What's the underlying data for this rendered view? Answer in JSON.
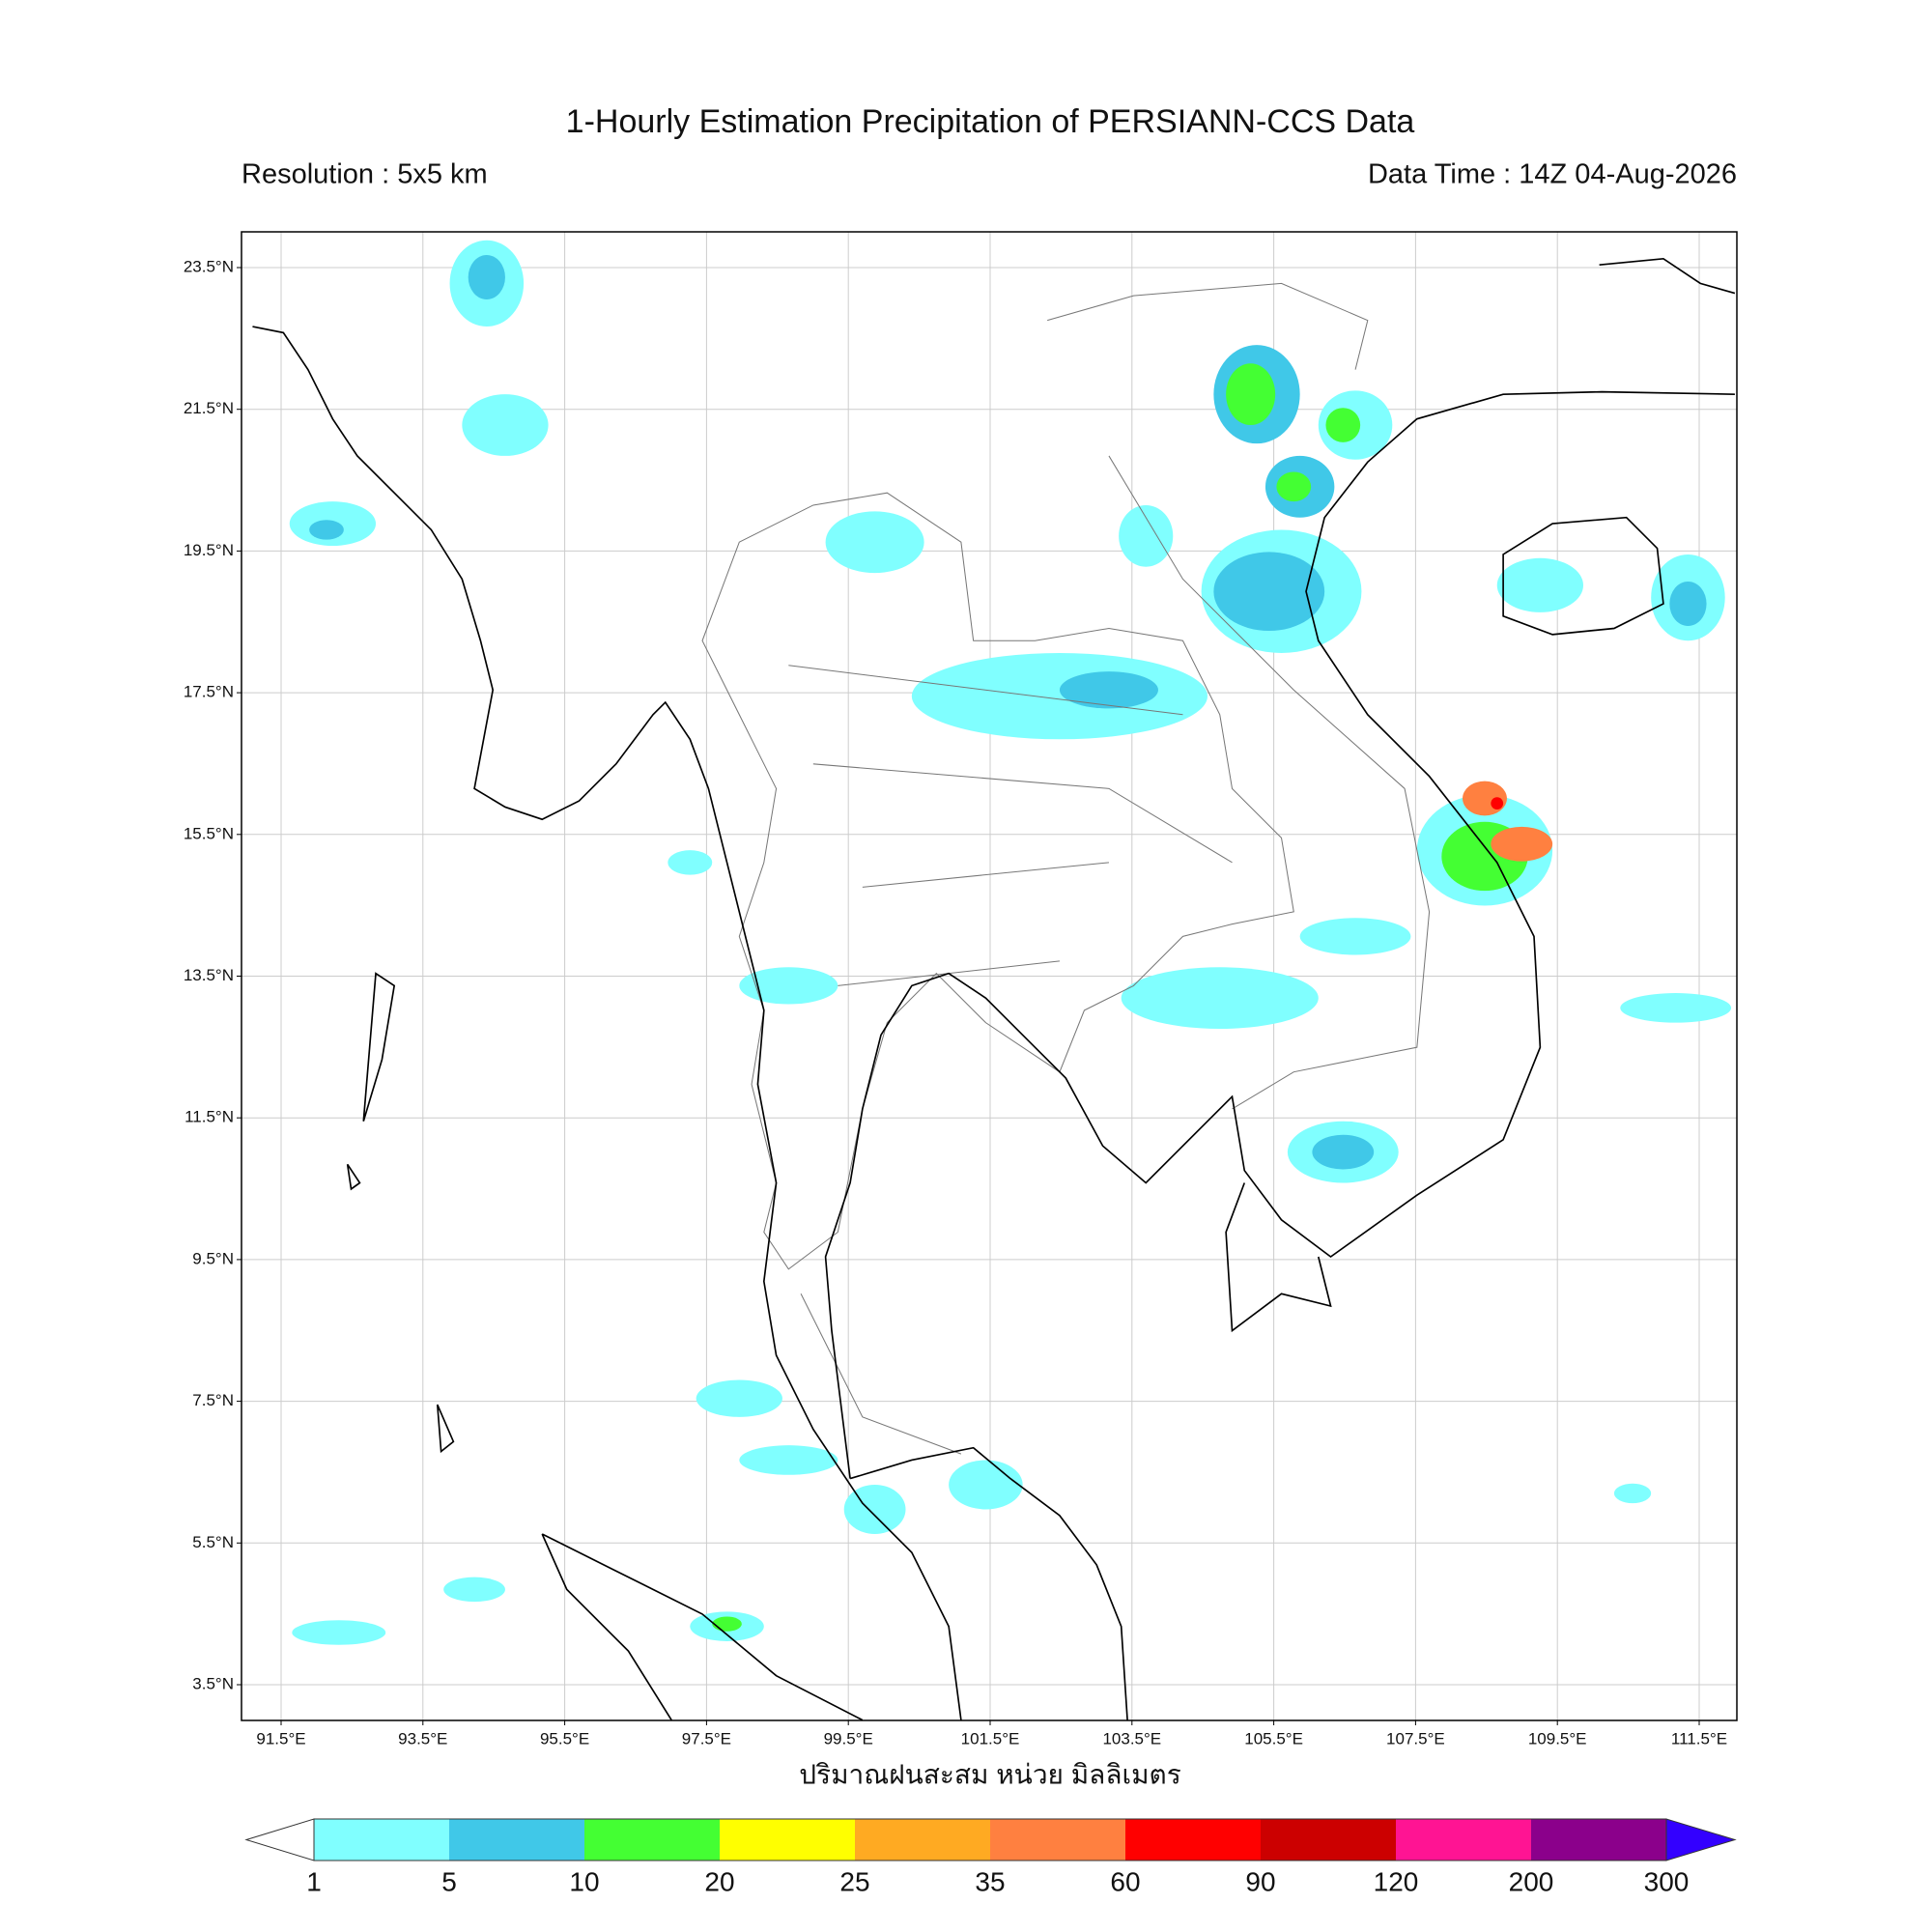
{
  "header": {
    "title": "1-Hourly Estimation Precipitation of PERSIANN-CCS Data",
    "resolution": "Resolution : 5x5 km",
    "data_time": "Data Time : 14Z 04-Aug-2026"
  },
  "map": {
    "lat_ticks": [
      {
        "value": 23.5,
        "label": "23.5°N"
      },
      {
        "value": 21.5,
        "label": "21.5°N"
      },
      {
        "value": 19.5,
        "label": "19.5°N"
      },
      {
        "value": 17.5,
        "label": "17.5°N"
      },
      {
        "value": 15.5,
        "label": "15.5°N"
      },
      {
        "value": 13.5,
        "label": "13.5°N"
      },
      {
        "value": 11.5,
        "label": "11.5°N"
      },
      {
        "value": 9.5,
        "label": "9.5°N"
      },
      {
        "value": 7.5,
        "label": "7.5°N"
      },
      {
        "value": 5.5,
        "label": "5.5°N"
      },
      {
        "value": 3.5,
        "label": "3.5°N"
      }
    ],
    "lon_ticks": [
      {
        "value": 91.5,
        "label": "91.5°E"
      },
      {
        "value": 93.5,
        "label": "93.5°E"
      },
      {
        "value": 95.5,
        "label": "95.5°E"
      },
      {
        "value": 97.5,
        "label": "97.5°E"
      },
      {
        "value": 99.5,
        "label": "99.5°E"
      },
      {
        "value": 101.5,
        "label": "101.5°E"
      },
      {
        "value": 103.5,
        "label": "103.5°E"
      },
      {
        "value": 105.5,
        "label": "105.5°E"
      },
      {
        "value": 107.5,
        "label": "107.5°E"
      },
      {
        "value": 109.5,
        "label": "109.5°E"
      },
      {
        "value": 111.5,
        "label": "111.5°E"
      }
    ],
    "axis_label": "ปริมาณฝนสะสม หน่วย มิลลิเมตร"
  },
  "colorbar": {
    "levels": [
      1,
      5,
      10,
      20,
      25,
      35,
      60,
      90,
      120,
      200,
      300
    ],
    "colors": [
      "#80ffff",
      "#40c8e8",
      "#44ff33",
      "#ffff00",
      "#ffaa22",
      "#ff8040",
      "#ff0000",
      "#cc0000",
      "#ff1493",
      "#8b008b"
    ],
    "under_color": "#ffffff",
    "over_color": "#3300ff"
  }
}
